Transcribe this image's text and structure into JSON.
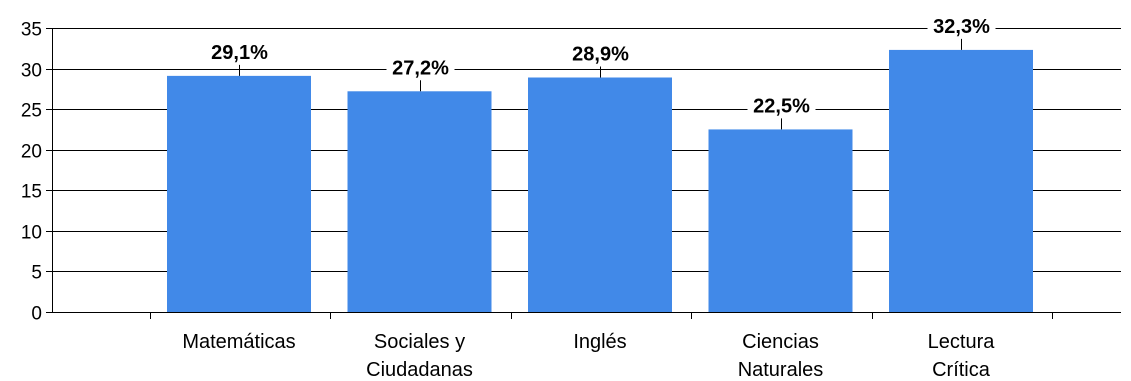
{
  "chart_data": {
    "type": "bar",
    "categories": [
      [
        "Matemáticas"
      ],
      [
        "Sociales y",
        "Ciudadanas"
      ],
      [
        "Inglés"
      ],
      [
        "Ciencias",
        "Naturales"
      ],
      [
        "Lectura",
        "Crítica"
      ]
    ],
    "values": [
      29.1,
      27.2,
      28.9,
      22.5,
      32.3
    ],
    "data_labels": [
      "29,1%",
      "27,2%",
      "28,9%",
      "22,5%",
      "32,3%"
    ],
    "yticks": [
      0,
      5,
      10,
      15,
      20,
      25,
      30,
      35
    ],
    "ylim": [
      0,
      35
    ],
    "grid": true,
    "bar_color": "#4189E8",
    "title": "",
    "xlabel": "",
    "ylabel": ""
  }
}
